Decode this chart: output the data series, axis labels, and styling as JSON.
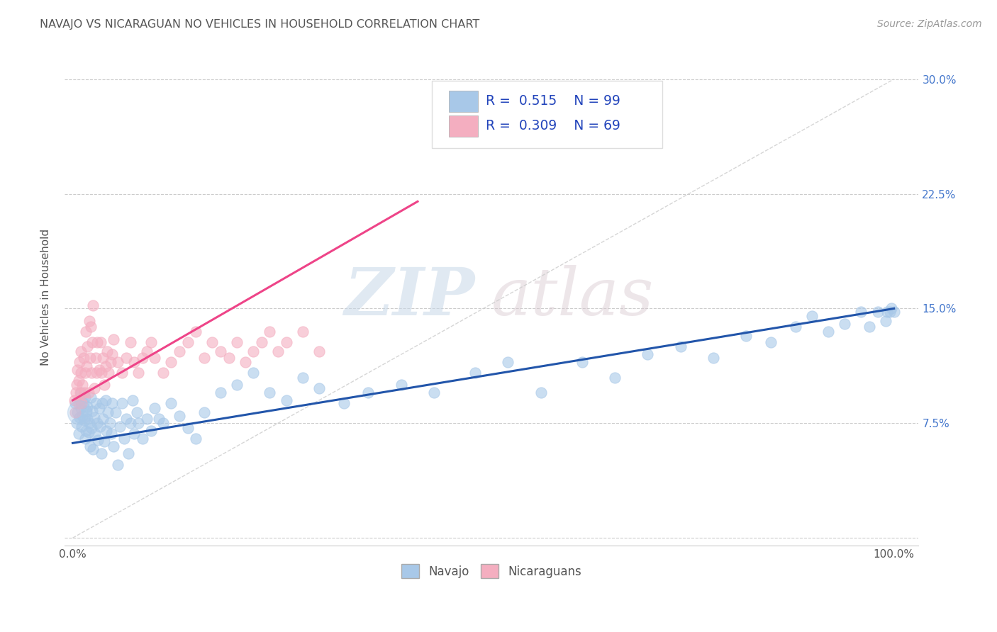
{
  "title": "NAVAJO VS NICARAGUAN NO VEHICLES IN HOUSEHOLD CORRELATION CHART",
  "source": "Source: ZipAtlas.com",
  "ylabel": "No Vehicles in Household",
  "xlim": [
    0.0,
    1.0
  ],
  "ylim": [
    -0.005,
    0.32
  ],
  "x_ticks": [
    0.0,
    0.25,
    0.5,
    0.75,
    1.0
  ],
  "x_tick_labels": [
    "0.0%",
    "",
    "",
    "",
    "100.0%"
  ],
  "y_ticks": [
    0.0,
    0.075,
    0.15,
    0.225,
    0.3
  ],
  "y_tick_labels_right": [
    "",
    "7.5%",
    "15.0%",
    "22.5%",
    "30.0%"
  ],
  "navajo_color": "#a8c8e8",
  "nicaraguan_color": "#f4aec0",
  "navajo_R": 0.515,
  "navajo_N": 99,
  "nicaraguan_R": 0.309,
  "nicaraguan_N": 69,
  "navajo_line_color": "#2255aa",
  "nicaraguan_line_color": "#ee4488",
  "diagonal_color": "#cccccc",
  "background_color": "#ffffff",
  "watermark_zip": "ZIP",
  "watermark_atlas": "atlas",
  "legend_navajo": "Navajo",
  "legend_nicaraguan": "Nicaraguans",
  "navajo_x": [
    0.003,
    0.005,
    0.006,
    0.007,
    0.008,
    0.009,
    0.01,
    0.01,
    0.011,
    0.012,
    0.013,
    0.014,
    0.015,
    0.015,
    0.016,
    0.017,
    0.018,
    0.018,
    0.019,
    0.02,
    0.021,
    0.022,
    0.023,
    0.024,
    0.025,
    0.026,
    0.027,
    0.028,
    0.03,
    0.031,
    0.032,
    0.033,
    0.035,
    0.036,
    0.037,
    0.038,
    0.04,
    0.041,
    0.043,
    0.045,
    0.047,
    0.048,
    0.05,
    0.052,
    0.055,
    0.057,
    0.06,
    0.063,
    0.065,
    0.068,
    0.07,
    0.073,
    0.075,
    0.078,
    0.08,
    0.085,
    0.09,
    0.095,
    0.1,
    0.105,
    0.11,
    0.12,
    0.13,
    0.14,
    0.15,
    0.16,
    0.18,
    0.2,
    0.22,
    0.24,
    0.26,
    0.28,
    0.3,
    0.33,
    0.36,
    0.4,
    0.44,
    0.49,
    0.53,
    0.57,
    0.62,
    0.66,
    0.7,
    0.74,
    0.78,
    0.82,
    0.85,
    0.88,
    0.9,
    0.92,
    0.94,
    0.96,
    0.97,
    0.98,
    0.99,
    0.992,
    0.995,
    0.997,
    1.0
  ],
  "navajo_y": [
    0.088,
    0.075,
    0.082,
    0.068,
    0.079,
    0.09,
    0.085,
    0.095,
    0.073,
    0.08,
    0.088,
    0.077,
    0.065,
    0.092,
    0.07,
    0.083,
    0.078,
    0.086,
    0.069,
    0.075,
    0.06,
    0.092,
    0.072,
    0.083,
    0.058,
    0.079,
    0.068,
    0.088,
    0.075,
    0.064,
    0.085,
    0.073,
    0.055,
    0.088,
    0.078,
    0.063,
    0.09,
    0.07,
    0.082,
    0.075,
    0.068,
    0.088,
    0.06,
    0.082,
    0.048,
    0.073,
    0.088,
    0.065,
    0.078,
    0.055,
    0.075,
    0.09,
    0.068,
    0.082,
    0.075,
    0.065,
    0.078,
    0.07,
    0.085,
    0.078,
    0.075,
    0.088,
    0.08,
    0.072,
    0.065,
    0.082,
    0.095,
    0.1,
    0.108,
    0.095,
    0.09,
    0.105,
    0.098,
    0.088,
    0.095,
    0.1,
    0.095,
    0.108,
    0.115,
    0.095,
    0.115,
    0.105,
    0.12,
    0.125,
    0.118,
    0.132,
    0.128,
    0.138,
    0.145,
    0.135,
    0.14,
    0.148,
    0.138,
    0.148,
    0.142,
    0.148,
    0.148,
    0.15,
    0.148
  ],
  "nicaraguan_x": [
    0.002,
    0.003,
    0.004,
    0.005,
    0.006,
    0.007,
    0.007,
    0.008,
    0.009,
    0.01,
    0.01,
    0.011,
    0.012,
    0.013,
    0.014,
    0.015,
    0.016,
    0.017,
    0.018,
    0.019,
    0.02,
    0.021,
    0.022,
    0.023,
    0.024,
    0.025,
    0.026,
    0.028,
    0.029,
    0.03,
    0.032,
    0.034,
    0.035,
    0.037,
    0.038,
    0.04,
    0.042,
    0.044,
    0.046,
    0.048,
    0.05,
    0.055,
    0.06,
    0.065,
    0.07,
    0.075,
    0.08,
    0.085,
    0.09,
    0.095,
    0.1,
    0.11,
    0.12,
    0.13,
    0.14,
    0.15,
    0.16,
    0.17,
    0.18,
    0.19,
    0.2,
    0.21,
    0.22,
    0.23,
    0.24,
    0.25,
    0.26,
    0.28,
    0.3
  ],
  "nicaraguan_y": [
    0.09,
    0.082,
    0.095,
    0.1,
    0.11,
    0.088,
    0.103,
    0.115,
    0.095,
    0.108,
    0.122,
    0.088,
    0.1,
    0.118,
    0.095,
    0.108,
    0.135,
    0.112,
    0.125,
    0.095,
    0.142,
    0.118,
    0.138,
    0.108,
    0.128,
    0.152,
    0.098,
    0.118,
    0.108,
    0.128,
    0.11,
    0.128,
    0.108,
    0.118,
    0.1,
    0.112,
    0.122,
    0.108,
    0.115,
    0.12,
    0.13,
    0.115,
    0.108,
    0.118,
    0.128,
    0.115,
    0.108,
    0.118,
    0.122,
    0.128,
    0.118,
    0.108,
    0.115,
    0.122,
    0.128,
    0.135,
    0.118,
    0.128,
    0.122,
    0.118,
    0.128,
    0.115,
    0.122,
    0.128,
    0.135,
    0.122,
    0.128,
    0.135,
    0.122
  ],
  "navajo_sizes": [
    200,
    100,
    100,
    100,
    100,
    100,
    100,
    100,
    100,
    100,
    100,
    100,
    100,
    100,
    100,
    100,
    100,
    100,
    100,
    100,
    100,
    100,
    100,
    100,
    100,
    100,
    100,
    100,
    100,
    100,
    100,
    100,
    100,
    100,
    100,
    100,
    100,
    100,
    100,
    100,
    100,
    100,
    100,
    100,
    100,
    100,
    100,
    100,
    100,
    100,
    100,
    100,
    100,
    100,
    100,
    100,
    100,
    100,
    100,
    100,
    100,
    100,
    100,
    100,
    100,
    100,
    100,
    100,
    100,
    100,
    100,
    100,
    100,
    100,
    100,
    100,
    100,
    100,
    100,
    100,
    100,
    100,
    100,
    100,
    100,
    100,
    100,
    100,
    100,
    100,
    100,
    100,
    100,
    100,
    100,
    100,
    100,
    100,
    100
  ]
}
